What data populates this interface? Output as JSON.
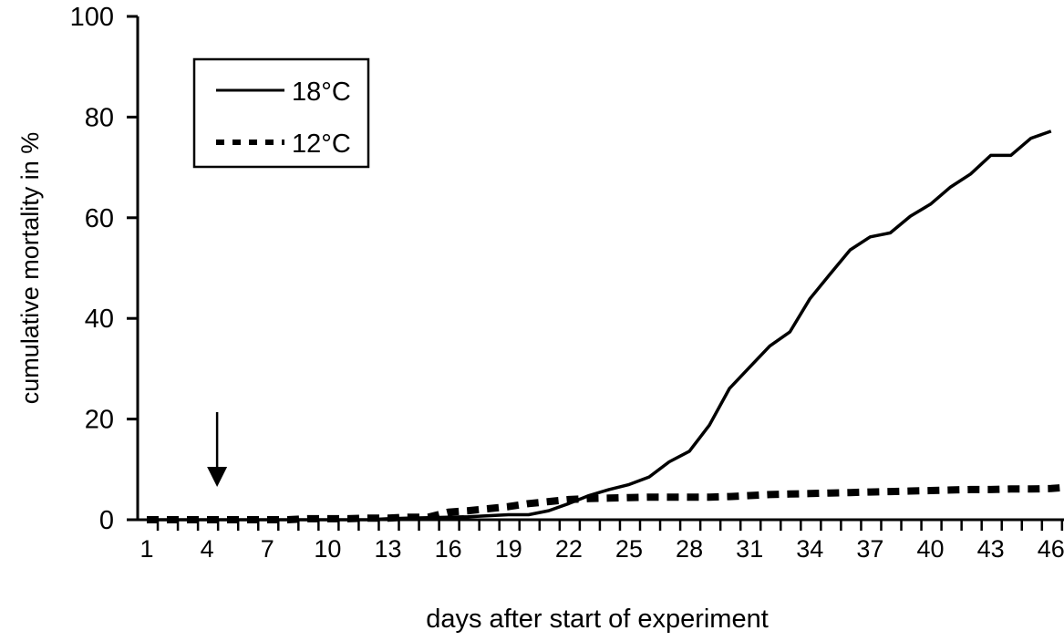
{
  "chart_data": {
    "type": "line",
    "title": "",
    "xlabel": "days after start of experiment",
    "ylabel": "cumulative mortality in %",
    "ylim": [
      0,
      100
    ],
    "yticks": [
      0,
      20,
      40,
      60,
      80,
      100
    ],
    "xticks": [
      1,
      4,
      7,
      10,
      13,
      16,
      19,
      22,
      25,
      28,
      31,
      34,
      37,
      40,
      43,
      46
    ],
    "grid": false,
    "legend_position": "top-left",
    "annotation": {
      "type": "arrow-down",
      "day": 4
    },
    "series": [
      {
        "name": "18°C",
        "style": "solid",
        "color": "#000000",
        "x": [
          1,
          2,
          3,
          4,
          5,
          6,
          7,
          8,
          9,
          10,
          11,
          12,
          13,
          14,
          15,
          16,
          17,
          18,
          19,
          20,
          21,
          22,
          23,
          24,
          25,
          26,
          27,
          28,
          29,
          30,
          31,
          32,
          33,
          34,
          35,
          36,
          37,
          38,
          39,
          40,
          41,
          42,
          43,
          44,
          45,
          46
        ],
        "values": [
          0,
          0,
          0,
          0,
          0,
          0,
          0,
          0,
          0,
          0,
          0,
          0,
          0.2,
          0.3,
          0.4,
          0.5,
          0.6,
          0.8,
          1.0,
          1.0,
          1.8,
          3.2,
          4.8,
          6.0,
          7.0,
          8.5,
          11.5,
          13.6,
          18.8,
          26.1,
          30.3,
          34.5,
          37.3,
          43.9,
          48.8,
          53.6,
          56.2,
          57.0,
          60.3,
          62.7,
          66.1,
          68.7,
          72.4,
          72.4,
          75.8,
          77.2
        ]
      },
      {
        "name": "12°C",
        "style": "dashed",
        "color": "#000000",
        "x": [
          1,
          2,
          3,
          4,
          5,
          6,
          7,
          8,
          9,
          10,
          11,
          12,
          13,
          14,
          15,
          16,
          17,
          18,
          19,
          20,
          21,
          22,
          23,
          24,
          25,
          26,
          27,
          28,
          29,
          30,
          31,
          32,
          33,
          34,
          35,
          36,
          37,
          38,
          39,
          40,
          41,
          42,
          43,
          44,
          45,
          46,
          47
        ],
        "values": [
          0,
          0,
          0,
          0,
          0,
          0,
          0,
          0,
          0.2,
          0.2,
          0.2,
          0.3,
          0.3,
          0.5,
          0.5,
          1.5,
          1.8,
          2.2,
          2.6,
          3.2,
          3.6,
          4.0,
          4.2,
          4.3,
          4.4,
          4.5,
          4.5,
          4.5,
          4.5,
          4.6,
          4.8,
          5.0,
          5.1,
          5.2,
          5.3,
          5.4,
          5.5,
          5.6,
          5.7,
          5.8,
          5.9,
          6.0,
          6.0,
          6.1,
          6.1,
          6.2,
          6.5
        ]
      }
    ]
  }
}
